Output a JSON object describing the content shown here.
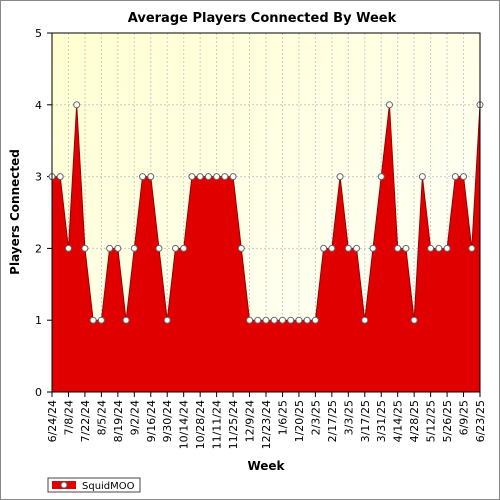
{
  "chart_data": {
    "type": "area",
    "title": "Average Players Connected By Week",
    "x_label": "Week",
    "y_label": "Players Connected",
    "categories": [
      "6/24/24",
      null,
      "7/8/24",
      null,
      "7/22/24",
      null,
      "8/5/24",
      null,
      "8/19/24",
      null,
      "9/2/24",
      null,
      "9/16/24",
      null,
      "9/30/24",
      null,
      "10/14/24",
      null,
      "10/28/24",
      null,
      "11/11/24",
      null,
      "11/25/24",
      null,
      "12/9/24",
      null,
      "12/23/24",
      null,
      "1/6/25",
      null,
      "1/20/25",
      null,
      "2/3/25",
      null,
      "2/17/25",
      null,
      "3/3/25",
      null,
      "3/17/25",
      null,
      "3/31/25",
      null,
      "4/14/25",
      null,
      "4/28/25",
      null,
      "5/12/25",
      null,
      "5/26/25",
      null,
      "6/9/25",
      null,
      "6/23/25"
    ],
    "series": [
      {
        "name": "SquidMOO",
        "color": "#e00000",
        "values": [
          3,
          3,
          2,
          4,
          2,
          1,
          1,
          2,
          2,
          1,
          2,
          3,
          3,
          2,
          1,
          2,
          2,
          3,
          3,
          3,
          3,
          3,
          3,
          2,
          1,
          1,
          1,
          1,
          1,
          1,
          1,
          1,
          1,
          2,
          2,
          3,
          2,
          2,
          1,
          2,
          3,
          4,
          2,
          2,
          1,
          3,
          2,
          2,
          2,
          3,
          3,
          2,
          4
        ]
      }
    ],
    "ylim": [
      0,
      5
    ],
    "yticks": [
      0,
      1,
      2,
      3,
      4,
      5
    ],
    "grid": true,
    "legend": "bottom-left"
  }
}
